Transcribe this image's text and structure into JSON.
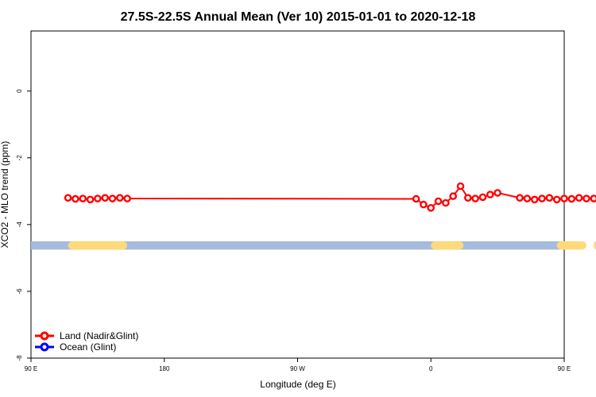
{
  "chart_data": {
    "type": "scatter",
    "title": "27.5S-22.5S Annual Mean (Ver 10)   2015-01-01 to 2020-12-18",
    "xlabel": "Longitude (deg E)",
    "ylabel": "XCO2 - MLO trend (ppm)",
    "xlim": [
      90,
      450
    ],
    "ylim": [
      -8,
      1.8
    ],
    "x_ticks": [
      {
        "value": 90,
        "label": "90 E"
      },
      {
        "value": 180,
        "label": "180"
      },
      {
        "value": 270,
        "label": "90 W"
      },
      {
        "value": 360,
        "label": "0"
      },
      {
        "value": 450,
        "label": "90 E"
      },
      {
        "value": 540,
        "label": "180"
      }
    ],
    "y_ticks": [
      {
        "value": 0,
        "label": "0"
      },
      {
        "value": -2,
        "label": "-2"
      },
      {
        "value": -4,
        "label": "-4"
      },
      {
        "value": -6,
        "label": "-6"
      },
      {
        "value": -8,
        "label": "-8"
      }
    ],
    "legend_position": "bottom-left",
    "series": [
      {
        "name": "Land (Nadir&Glint)",
        "color": "#ff0000",
        "style": "line-circle",
        "x": [
          115,
          120,
          125,
          130,
          135,
          140,
          145,
          150,
          155,
          350,
          355,
          360,
          365,
          370,
          375,
          380,
          385,
          390,
          395,
          400,
          405,
          420,
          425,
          430,
          435,
          440,
          445,
          450,
          455,
          460,
          465,
          470,
          475,
          480,
          485,
          490,
          495
        ],
        "y": [
          -3.2,
          -3.23,
          -3.22,
          -3.25,
          -3.22,
          -3.2,
          -3.22,
          -3.2,
          -3.22,
          -3.23,
          -3.4,
          -3.5,
          -3.3,
          -3.35,
          -3.15,
          -2.85,
          -3.2,
          -3.22,
          -3.18,
          -3.1,
          -3.05,
          -3.2,
          -3.22,
          -3.25,
          -3.22,
          -3.2,
          -3.25,
          -3.22,
          -3.23,
          -3.2,
          -3.22,
          -3.22,
          -3.25,
          -3.2,
          -3.2,
          -3.22,
          -3.22
        ],
        "x_note": "land points plotted at x = longitude + offset"
      },
      {
        "name": "Ocean (Glint)",
        "color": "#0000ff",
        "style": "line-circle",
        "x": [],
        "y": []
      }
    ],
    "land_mask": {
      "band_y": [
        -4.5,
        -4.75
      ],
      "ocean_color": "#a5bbdd",
      "land_color": "#ffd97a",
      "land_segments": [
        [
          115,
          155
        ],
        [
          360,
          382
        ],
        [
          445,
          465
        ],
        [
          470,
          472
        ],
        [
          495,
          535
        ]
      ]
    }
  }
}
